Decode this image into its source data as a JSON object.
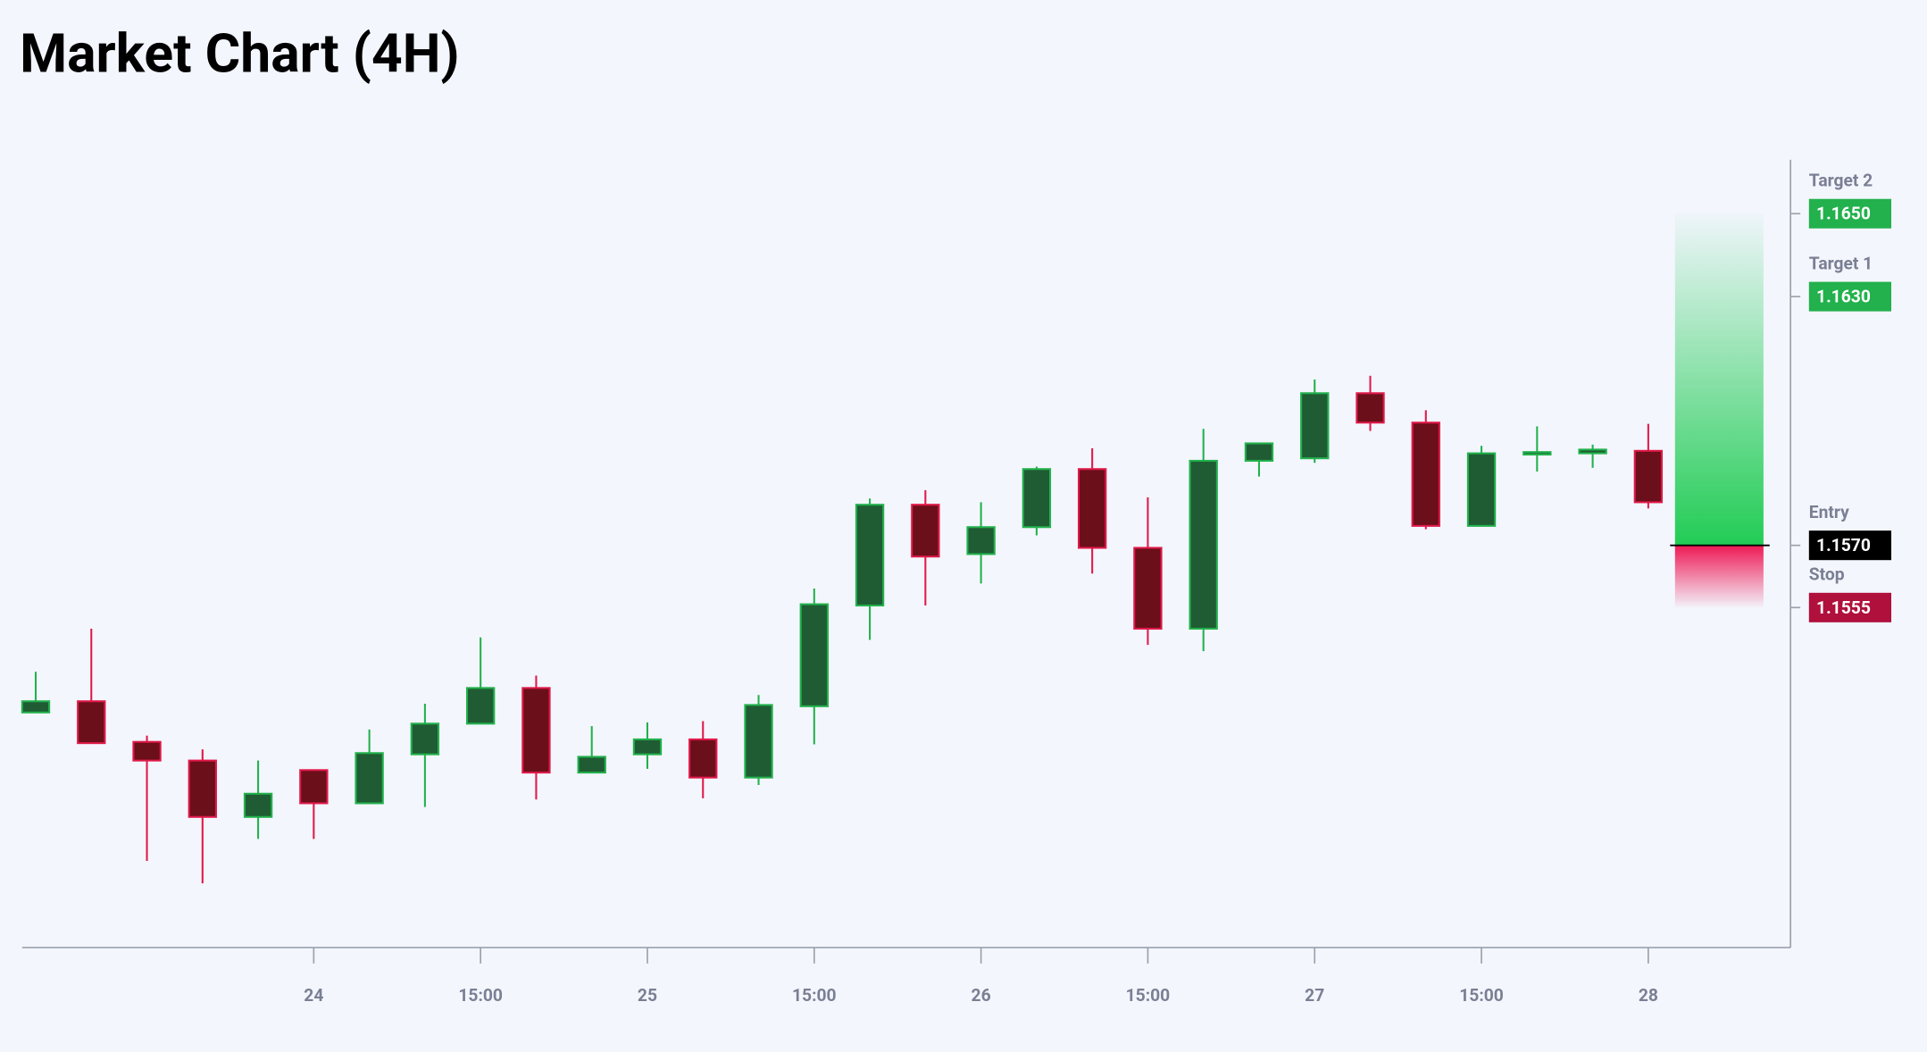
{
  "chart_data": {
    "type": "candlestick",
    "title": "Market Chart (4H)",
    "categories": [
      null,
      null,
      null,
      null,
      null,
      "24",
      null,
      null,
      "15:00",
      null,
      null,
      "25",
      null,
      null,
      "15:00",
      null,
      null,
      "26",
      null,
      null,
      "15:00",
      null,
      null,
      "27",
      null,
      null,
      "15:00",
      null,
      null,
      "28"
    ],
    "open": [
      1.15297,
      1.15324,
      1.15226,
      1.15181,
      1.15045,
      1.15158,
      1.15078,
      1.15196,
      1.1527,
      1.15356,
      1.15152,
      1.15196,
      1.15232,
      1.1514,
      1.15312,
      1.15555,
      1.15798,
      1.15679,
      1.15744,
      1.15884,
      1.15694,
      1.15499,
      1.15904,
      1.1591,
      1.16067,
      1.15996,
      1.15747,
      1.15919,
      1.15922,
      1.15928
    ],
    "high": [
      1.15395,
      1.15499,
      1.15241,
      1.15208,
      1.15181,
      1.15158,
      1.15256,
      1.15318,
      1.15478,
      1.15386,
      1.15264,
      1.15273,
      1.15276,
      1.15339,
      1.15596,
      1.15813,
      1.15833,
      1.15804,
      1.1589,
      1.15934,
      1.15816,
      1.15981,
      1.15946,
      1.161,
      1.16109,
      1.16026,
      1.1594,
      1.15987,
      1.15943,
      1.15993
    ],
    "low": [
      1.15297,
      1.15223,
      1.14939,
      1.14885,
      1.14992,
      1.14992,
      1.15078,
      1.15069,
      1.1527,
      1.15087,
      1.15152,
      1.15161,
      1.1509,
      1.15122,
      1.1522,
      1.15472,
      1.15555,
      1.15608,
      1.15724,
      1.15632,
      1.1546,
      1.15445,
      1.15866,
      1.15899,
      1.15976,
      1.15739,
      1.15747,
      1.15878,
      1.15887,
      1.15789
    ],
    "close": [
      1.15324,
      1.15223,
      1.15181,
      1.15045,
      1.15101,
      1.15078,
      1.15199,
      1.1527,
      1.15356,
      1.15152,
      1.1519,
      1.15232,
      1.1514,
      1.15315,
      1.15558,
      1.15798,
      1.15673,
      1.15744,
      1.15884,
      1.15694,
      1.15499,
      1.15904,
      1.15946,
      1.16067,
      1.15996,
      1.15747,
      1.15922,
      1.15925,
      1.15931,
      1.15804
    ],
    "up_color": "#1f5c33",
    "up_edge": "#22b14c",
    "down_color": "#6b0f1a",
    "down_edge": "#e0194a",
    "ylim": [
      1.1473,
      1.1663
    ],
    "levels": [
      {
        "name": "Target 2",
        "value": {
          "value": 1.165,
          "label": "1.1650"
        },
        "color": "#22b14c"
      },
      {
        "name": "Target 1",
        "value": {
          "value": 1.163,
          "label": "1.1630"
        },
        "color": "#22b14c"
      },
      {
        "name": "Entry",
        "value": {
          "value": 1.157,
          "label": "1.1570"
        },
        "color": "#000000"
      },
      {
        "name": "Stop",
        "value": {
          "value": 1.1555,
          "label": "1.1555"
        },
        "color": "#b0103c"
      }
    ]
  }
}
